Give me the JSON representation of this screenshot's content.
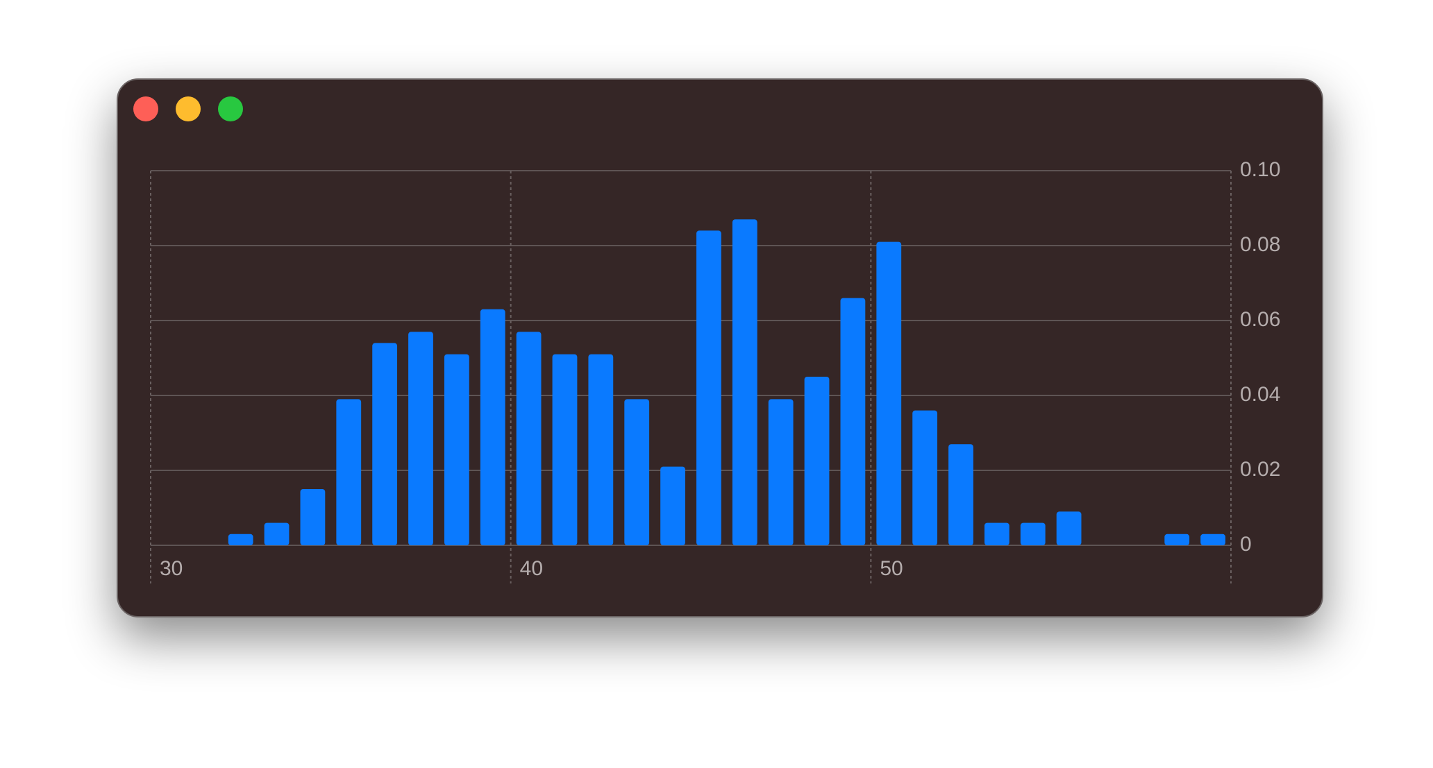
{
  "chart_data": {
    "type": "histogram",
    "bins": [
      30,
      31,
      32,
      33,
      34,
      35,
      36,
      37,
      38,
      39,
      40,
      41,
      42,
      43,
      44,
      45,
      46,
      47,
      48,
      49,
      50,
      51,
      52,
      53,
      54,
      55,
      56,
      57,
      58,
      59,
      60
    ],
    "values": [
      0,
      0,
      0.003,
      0.006,
      0.015,
      0.039,
      0.054,
      0.057,
      0.051,
      0.063,
      0.057,
      0.051,
      0.051,
      0.039,
      0.021,
      0.084,
      0.087,
      0.039,
      0.045,
      0.066,
      0.081,
      0.036,
      0.027,
      0.006,
      0.006,
      0.009,
      0,
      0,
      0.003,
      0.003
    ],
    "color": "#0a7aff",
    "xlim": [
      30,
      60
    ],
    "xticks": [
      30,
      40,
      50
    ],
    "ylim": [
      0,
      0.1
    ],
    "yticks": [
      0,
      0.02,
      0.04,
      0.06,
      0.08,
      {
        "value": 0.1,
        "label": "0.10"
      }
    ],
    "grid": true
  }
}
